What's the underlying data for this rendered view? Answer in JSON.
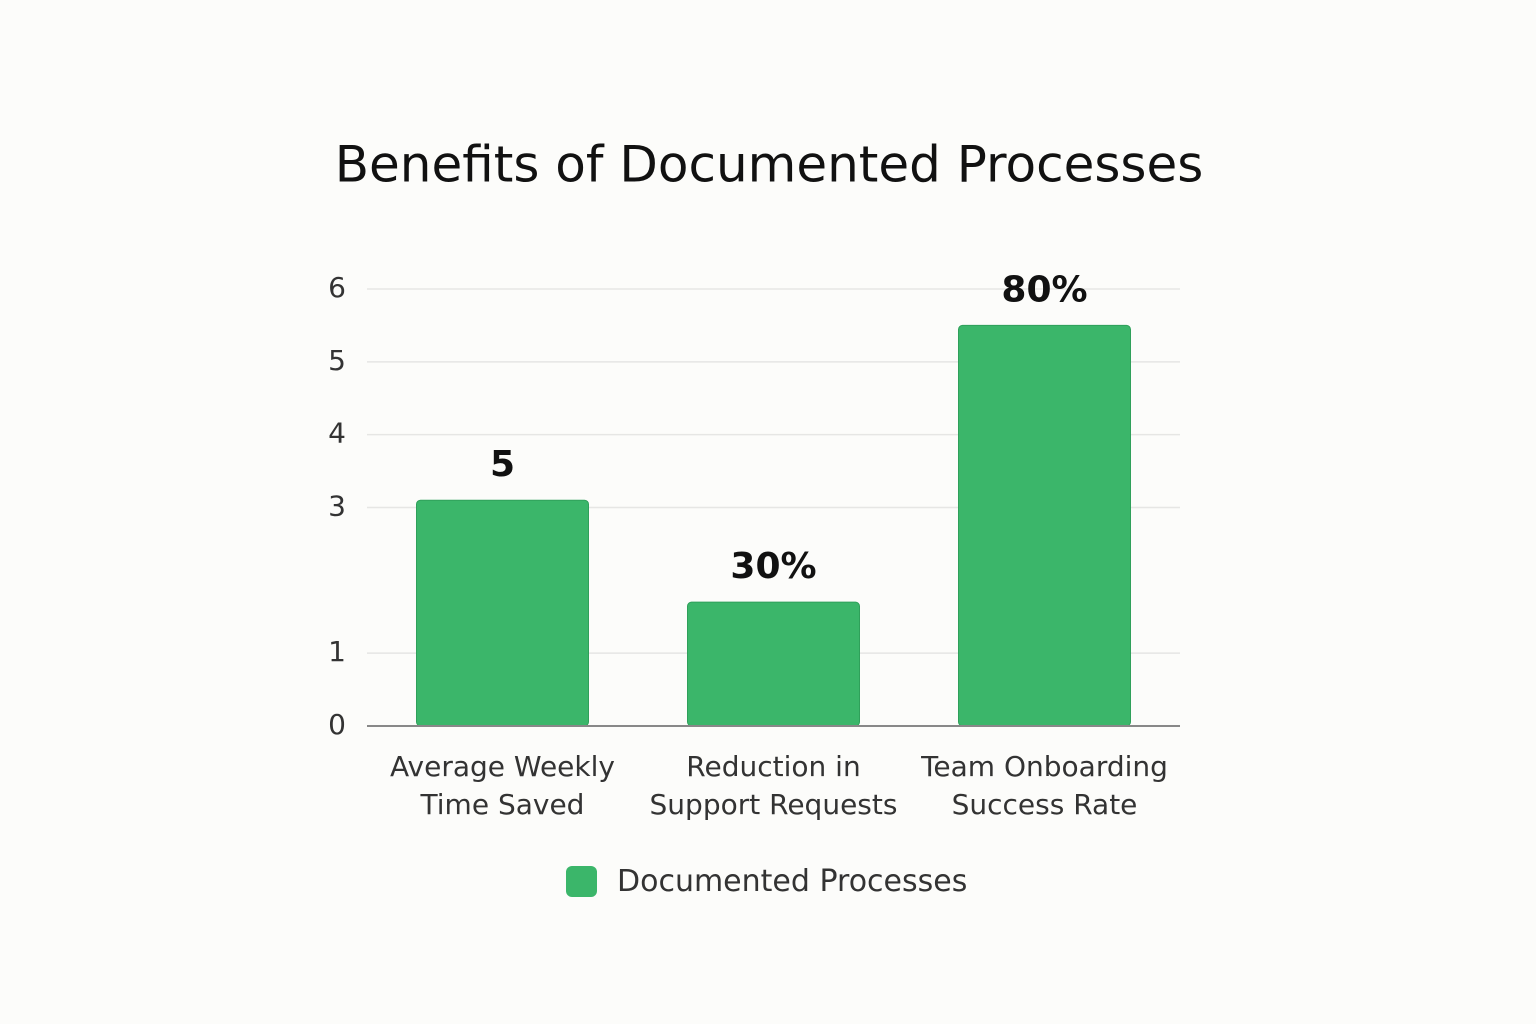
{
  "chart_data": {
    "type": "bar",
    "title": "Benefits of Documented Processes",
    "categories": [
      "Average Weekly Time Saved",
      "Reduction in Support Requests",
      "Team Onboarding Success Rate"
    ],
    "series": [
      {
        "name": "Documented Processes",
        "color": "#3bb66a",
        "values": [
          3.1,
          1.7,
          5.5
        ]
      }
    ],
    "annotations": [
      "5",
      "30%",
      "80%"
    ],
    "ylim": [
      0,
      6
    ],
    "yticks": [
      0,
      1,
      3,
      4,
      5,
      6
    ],
    "grid": true
  }
}
